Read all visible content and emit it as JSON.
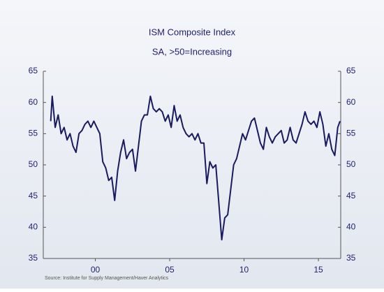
{
  "chart_data": {
    "type": "line",
    "title": "ISM Composite Index",
    "subtitle": "SA, >50=Increasing",
    "source": "Source: Institute for Supply Management/Haver Analytics",
    "xlim": [
      1997.0,
      2017.0
    ],
    "xticks": [
      {
        "value": 2000.5,
        "label": "00"
      },
      {
        "value": 2005.5,
        "label": "05"
      },
      {
        "value": 2010.5,
        "label": "10"
      },
      {
        "value": 2015.5,
        "label": "15"
      }
    ],
    "ylim": [
      35,
      65
    ],
    "yticks": [
      35,
      40,
      45,
      50,
      55,
      60,
      65
    ],
    "y2lim": [
      35,
      65
    ],
    "y2ticks": [
      35,
      40,
      45,
      50,
      55,
      60,
      65
    ],
    "series": [
      {
        "name": "ISM Composite Index",
        "color": "#1a1a5e",
        "x": [
          1997.5,
          1997.6,
          1997.8,
          1998.0,
          1998.2,
          1998.4,
          1998.6,
          1998.8,
          1999.0,
          1999.2,
          1999.4,
          1999.6,
          1999.8,
          2000.0,
          2000.2,
          2000.4,
          2000.6,
          2000.8,
          2001.0,
          2001.2,
          2001.4,
          2001.6,
          2001.8,
          2002.0,
          2002.2,
          2002.4,
          2002.6,
          2002.8,
          2003.0,
          2003.2,
          2003.4,
          2003.6,
          2003.8,
          2004.0,
          2004.2,
          2004.4,
          2004.6,
          2004.8,
          2005.0,
          2005.2,
          2005.4,
          2005.6,
          2005.8,
          2006.0,
          2006.2,
          2006.4,
          2006.6,
          2006.8,
          2007.0,
          2007.2,
          2007.4,
          2007.6,
          2007.8,
          2008.0,
          2008.2,
          2008.4,
          2008.6,
          2008.8,
          2009.0,
          2009.2,
          2009.4,
          2009.6,
          2009.8,
          2010.0,
          2010.2,
          2010.4,
          2010.6,
          2010.8,
          2011.0,
          2011.2,
          2011.4,
          2011.6,
          2011.8,
          2012.0,
          2012.2,
          2012.4,
          2012.6,
          2012.8,
          2013.0,
          2013.2,
          2013.4,
          2013.6,
          2013.8,
          2014.0,
          2014.2,
          2014.4,
          2014.6,
          2014.8,
          2015.0,
          2015.2,
          2015.4,
          2015.6,
          2015.8,
          2016.0,
          2016.2,
          2016.4,
          2016.6,
          2016.8,
          2016.95
        ],
        "values": [
          57,
          61,
          56,
          58,
          55,
          56,
          54,
          55,
          53,
          52,
          55,
          55.5,
          56.5,
          57,
          56,
          57,
          56,
          55,
          50.5,
          49.5,
          47.5,
          48,
          44.3,
          49,
          52,
          54,
          51,
          52,
          52.5,
          49,
          53,
          57,
          58,
          58,
          61,
          59,
          58.5,
          59,
          58.5,
          57,
          58,
          56,
          59.5,
          57,
          58,
          56,
          55,
          54.5,
          55,
          54,
          55,
          53.5,
          53.5,
          47,
          50.5,
          49.5,
          50,
          44,
          38,
          41.5,
          42,
          46,
          50,
          51,
          53,
          55,
          54,
          55.5,
          57,
          57.5,
          55.5,
          53.5,
          52.5,
          56,
          54.5,
          53.5,
          54.5,
          55,
          55.5,
          53.5,
          54,
          56,
          54,
          53.5,
          55,
          56.5,
          58.5,
          57,
          56.5,
          57,
          56,
          58.5,
          56.5,
          53,
          55,
          52.5,
          51.5,
          56,
          57
        ]
      }
    ]
  }
}
